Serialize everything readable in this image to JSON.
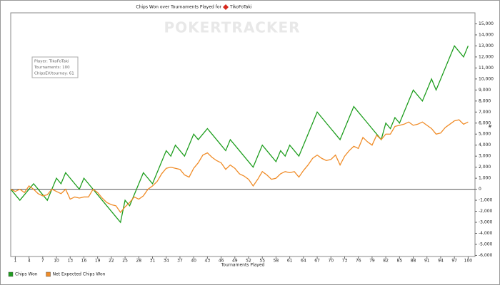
{
  "chart_data": {
    "type": "line",
    "title": "Chips Won over Tournaments Played for",
    "title_player": "TikoFoTaki",
    "watermark": "POKERTRACKER",
    "info": [
      "Player: TikoFoTaki",
      "Tournaments: 100",
      "ChipsEV/tournay: 61"
    ],
    "x_label": "Tournaments Played",
    "y_label": "#",
    "x": [
      0,
      1,
      2,
      3,
      4,
      5,
      6,
      7,
      8,
      9,
      10,
      11,
      12,
      13,
      14,
      15,
      16,
      17,
      18,
      19,
      20,
      21,
      22,
      23,
      24,
      25,
      26,
      27,
      28,
      29,
      30,
      31,
      32,
      33,
      34,
      35,
      36,
      37,
      38,
      39,
      40,
      41,
      42,
      43,
      44,
      45,
      46,
      47,
      48,
      49,
      50,
      51,
      52,
      53,
      54,
      55,
      56,
      57,
      58,
      59,
      60,
      61,
      62,
      63,
      64,
      65,
      66,
      67,
      68,
      69,
      70,
      71,
      72,
      73,
      74,
      75,
      76,
      77,
      78,
      79,
      80,
      81,
      82,
      83,
      84,
      85,
      86,
      87,
      88,
      89,
      90,
      91,
      92,
      93,
      94,
      95,
      96,
      97,
      98,
      99,
      100
    ],
    "series": [
      {
        "name": "Chips Won",
        "color": "#1f9e1f",
        "values": [
          0,
          -500,
          -1000,
          -500,
          0,
          500,
          0,
          -500,
          -1000,
          0,
          1000,
          500,
          1500,
          1000,
          500,
          0,
          1000,
          500,
          0,
          -500,
          -1000,
          -1500,
          -2000,
          -2500,
          -3000,
          -1000,
          -1500,
          -500,
          500,
          1500,
          1000,
          500,
          1500,
          2500,
          3500,
          3000,
          4000,
          3500,
          3000,
          4000,
          5000,
          4500,
          5000,
          5500,
          5000,
          4500,
          4000,
          3500,
          4500,
          4000,
          3500,
          3000,
          2500,
          2000,
          3000,
          4000,
          3500,
          3000,
          2500,
          3500,
          3000,
          4000,
          3500,
          3000,
          4000,
          5000,
          6000,
          7000,
          6500,
          6000,
          5500,
          5000,
          4500,
          5500,
          6500,
          7500,
          7000,
          6500,
          6000,
          5500,
          5000,
          4500,
          6000,
          5500,
          6500,
          6000,
          7000,
          8000,
          9000,
          8500,
          8000,
          9000,
          10000,
          9000,
          10000,
          11000,
          12000,
          13000,
          12500,
          12000,
          13000
        ]
      },
      {
        "name": "Net Expected Chips Won",
        "color": "#f08c28",
        "values": [
          0,
          -200,
          0,
          -300,
          300,
          0,
          -400,
          -600,
          -500,
          0,
          -200,
          -400,
          0,
          -900,
          -700,
          -800,
          -700,
          -700,
          0,
          -300,
          -800,
          -1200,
          -1400,
          -1500,
          -2100,
          -1600,
          -1200,
          -700,
          -900,
          -600,
          0,
          300,
          700,
          1400,
          1900,
          2000,
          1900,
          1800,
          1300,
          1100,
          1900,
          2400,
          3100,
          3300,
          2900,
          2600,
          2400,
          1800,
          2200,
          1900,
          1400,
          1200,
          900,
          300,
          900,
          1600,
          1300,
          900,
          1000,
          1400,
          1600,
          1500,
          1600,
          1100,
          1700,
          2200,
          2800,
          3100,
          2800,
          2600,
          2700,
          3100,
          2200,
          3000,
          3500,
          3900,
          3700,
          4700,
          4300,
          4000,
          4900,
          4500,
          5000,
          5000,
          5700,
          5800,
          5900,
          6100,
          5800,
          5900,
          6100,
          5800,
          5500,
          5000,
          5100,
          5600,
          5900,
          6200,
          6300,
          5900,
          6100
        ]
      }
    ],
    "xlim": [
      0,
      101.5
    ],
    "xticks": [
      1,
      4,
      7,
      10,
      13,
      16,
      19,
      22,
      25,
      28,
      31,
      34,
      37,
      40,
      43,
      46,
      49,
      52,
      55,
      58,
      61,
      64,
      67,
      70,
      73,
      76,
      79,
      82,
      85,
      88,
      91,
      94,
      97,
      100
    ],
    "ylim": [
      -6100,
      16000
    ],
    "yticks": [
      {
        "value": -6000,
        "label": "-6,000"
      },
      {
        "value": -5000,
        "label": "-5,000"
      },
      {
        "value": -4000,
        "label": "-4,000"
      },
      {
        "value": -3000,
        "label": "-3,000"
      },
      {
        "value": -2000,
        "label": "-2,000"
      },
      {
        "value": -1000,
        "label": "-1,000"
      },
      0,
      {
        "value": 1000,
        "label": "1,000"
      },
      {
        "value": 2000,
        "label": "2,000"
      },
      {
        "value": 3000,
        "label": "3,000"
      },
      {
        "value": 4000,
        "label": "4,000"
      },
      {
        "value": 5000,
        "label": "5,000"
      },
      {
        "value": 6000,
        "label": "6,000"
      },
      {
        "value": 7000,
        "label": "7,000"
      },
      {
        "value": 8000,
        "label": "8,000"
      },
      {
        "value": 9000,
        "label": "9,000"
      },
      {
        "value": 10000,
        "label": "10,000"
      },
      {
        "value": 11000,
        "label": "11,000"
      },
      {
        "value": 12000,
        "label": "12,000"
      },
      {
        "value": 13000,
        "label": "13,000"
      },
      {
        "value": 14000,
        "label": "14,000"
      },
      {
        "value": 15000,
        "label": "15,000"
      }
    ],
    "zero_line": true,
    "legend": "bottom-left"
  }
}
